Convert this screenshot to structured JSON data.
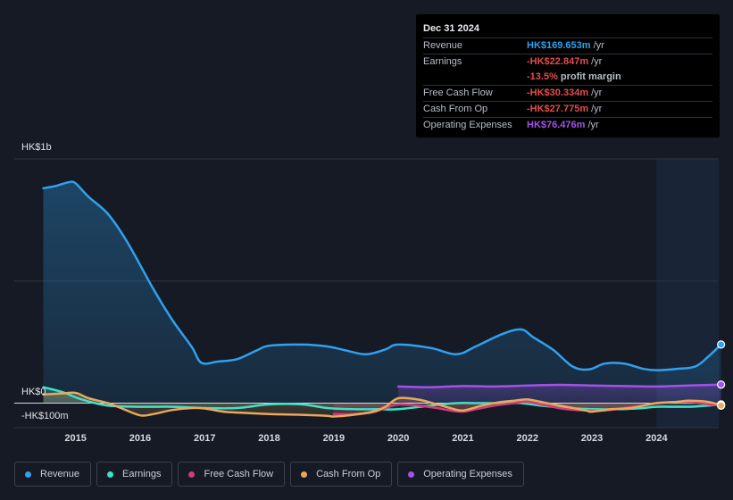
{
  "chart_data": {
    "type": "area",
    "y_unit": "HK$ millions",
    "ylim": [
      -100,
      1000
    ],
    "y_labels": [
      {
        "value": 1000,
        "label": "HK$1b"
      },
      {
        "value": 0,
        "label": "HK$0"
      },
      {
        "value": -100,
        "label": "-HK$100m"
      }
    ],
    "x_ticks": [
      2015,
      2016,
      2017,
      2018,
      2019,
      2020,
      2021,
      2022,
      2023,
      2024
    ],
    "x_range": [
      2014.5,
      2025.0
    ],
    "highlight_from": 2024.0,
    "series": [
      {
        "key": "revenue",
        "name": "Revenue",
        "color": "#2fa1ef",
        "fill": true,
        "x": [
          2014.5,
          2014.7,
          2014.9,
          2015.0,
          2015.2,
          2015.5,
          2015.8,
          2016.2,
          2016.5,
          2016.8,
          2016.95,
          2017.2,
          2017.5,
          2017.8,
          2018.0,
          2018.5,
          2018.9,
          2019.2,
          2019.5,
          2019.8,
          2020.0,
          2020.5,
          2020.9,
          2021.2,
          2021.6,
          2021.9,
          2022.1,
          2022.4,
          2022.7,
          2022.95,
          2023.2,
          2023.5,
          2023.8,
          2024.0,
          2024.3,
          2024.6,
          2024.8,
          2025.0
        ],
        "y": [
          880,
          890,
          905,
          900,
          845,
          775,
          660,
          470,
          340,
          230,
          165,
          170,
          180,
          215,
          235,
          240,
          232,
          215,
          200,
          220,
          240,
          226,
          200,
          232,
          282,
          302,
          268,
          218,
          150,
          138,
          162,
          162,
          140,
          135,
          140,
          150,
          190,
          240
        ]
      },
      {
        "key": "earnings",
        "name": "Earnings",
        "color": "#3fe0c8",
        "fill": true,
        "x": [
          2014.5,
          2014.8,
          2015.1,
          2015.5,
          2016.0,
          2016.5,
          2017.0,
          2017.5,
          2018.0,
          2018.5,
          2018.9,
          2019.3,
          2019.7,
          2020.0,
          2020.5,
          2020.9,
          2021.2,
          2021.6,
          2021.9,
          2022.2,
          2022.6,
          2023.0,
          2023.4,
          2023.8,
          2024.0,
          2024.5,
          2024.8,
          2025.0
        ],
        "y": [
          65,
          45,
          15,
          -10,
          -15,
          -15,
          -20,
          -20,
          -5,
          -5,
          -20,
          -25,
          -25,
          -25,
          -10,
          0,
          0,
          0,
          0,
          -10,
          -20,
          -25,
          -25,
          -20,
          -15,
          -15,
          -10,
          -5
        ]
      },
      {
        "key": "fcf",
        "name": "Free Cash Flow",
        "color": "#cf3d78",
        "fill": true,
        "from": 2019.0,
        "x": [
          2019.0,
          2019.3,
          2019.6,
          2019.8,
          2020.0,
          2020.3,
          2020.6,
          2020.8,
          2021.0,
          2021.2,
          2021.5,
          2021.8,
          2022.0,
          2022.3,
          2022.6,
          2022.9,
          2023.2,
          2023.5,
          2023.8,
          2024.0,
          2024.5,
          2024.8,
          2025.0
        ],
        "y": [
          -45,
          -45,
          -38,
          -20,
          -5,
          -10,
          -20,
          -30,
          -35,
          -25,
          -10,
          0,
          5,
          -10,
          -25,
          -30,
          -30,
          -20,
          -10,
          0,
          5,
          -5,
          -10
        ]
      },
      {
        "key": "cfo",
        "name": "Cash From Op",
        "color": "#e9a85c",
        "fill": true,
        "x": [
          2014.5,
          2014.8,
          2015.0,
          2015.2,
          2015.5,
          2015.7,
          2016.0,
          2016.2,
          2016.5,
          2016.8,
          2017.0,
          2017.3,
          2017.6,
          2018.0,
          2018.5,
          2018.9,
          2019.0,
          2019.3,
          2019.6,
          2019.8,
          2020.0,
          2020.3,
          2020.6,
          2020.8,
          2021.0,
          2021.3,
          2021.6,
          2021.8,
          2022.0,
          2022.3,
          2022.6,
          2022.9,
          2023.0,
          2023.3,
          2023.6,
          2024.0,
          2024.3,
          2024.5,
          2024.8,
          2025.0
        ],
        "y": [
          35,
          40,
          42,
          20,
          0,
          -20,
          -50,
          -45,
          -28,
          -20,
          -22,
          -35,
          -40,
          -45,
          -48,
          -52,
          -55,
          -48,
          -35,
          -15,
          20,
          15,
          -5,
          -20,
          -30,
          -10,
          5,
          10,
          15,
          0,
          -15,
          -30,
          -35,
          -25,
          -20,
          0,
          5,
          10,
          5,
          -10
        ]
      },
      {
        "key": "opex",
        "name": "Operating Expenses",
        "color": "#a352e8",
        "fill": true,
        "from": 2020.0,
        "x": [
          2020.0,
          2020.5,
          2021.0,
          2021.5,
          2022.0,
          2022.5,
          2023.0,
          2023.5,
          2024.0,
          2024.5,
          2025.0
        ],
        "y": [
          68,
          65,
          70,
          68,
          72,
          75,
          72,
          70,
          68,
          72,
          76
        ]
      }
    ]
  },
  "tooltip": {
    "date": "Dec 31 2024",
    "rows": [
      {
        "label": "Revenue",
        "value": "HK$169.653m",
        "unit": "/yr",
        "color": "#2fa1ef"
      },
      {
        "label": "Earnings",
        "value": "-HK$22.847m",
        "unit": "/yr",
        "color": "#e44d4d"
      },
      {
        "label": "",
        "value": "-13.5%",
        "unit": "profit margin",
        "color": "#e44d4d"
      },
      {
        "label": "Free Cash Flow",
        "value": "-HK$30.334m",
        "unit": "/yr",
        "color": "#e44d4d"
      },
      {
        "label": "Cash From Op",
        "value": "-HK$27.775m",
        "unit": "/yr",
        "color": "#e44d4d"
      },
      {
        "label": "Operating Expenses",
        "value": "HK$76.476m",
        "unit": "/yr",
        "color": "#a352e8"
      }
    ]
  },
  "legend": [
    {
      "label": "Revenue",
      "color": "#2fa1ef"
    },
    {
      "label": "Earnings",
      "color": "#3fe0c8"
    },
    {
      "label": "Free Cash Flow",
      "color": "#cf3d78"
    },
    {
      "label": "Cash From Op",
      "color": "#e9a85c"
    },
    {
      "label": "Operating Expenses",
      "color": "#a352e8"
    }
  ]
}
